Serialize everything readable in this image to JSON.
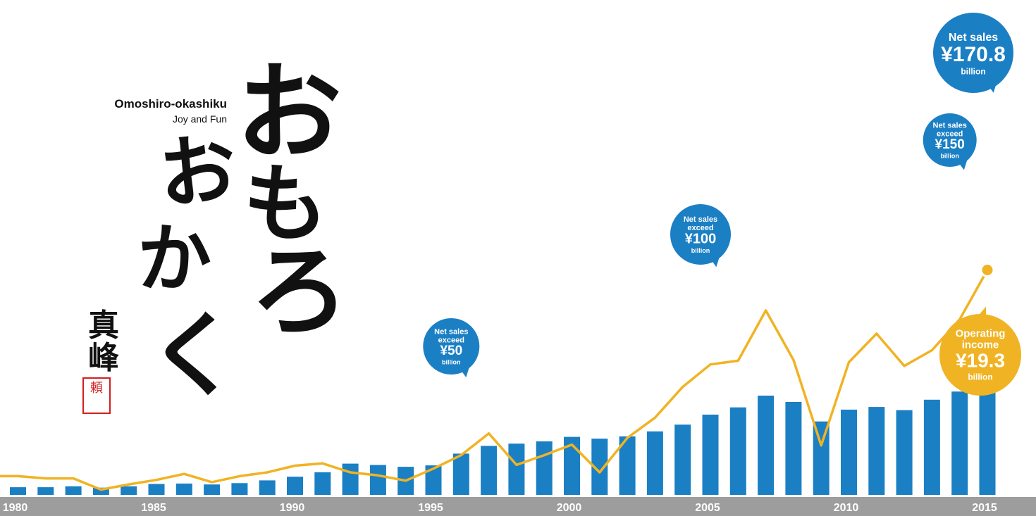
{
  "tagline": {
    "main": "Omoshiro-okashiku",
    "sub": "Joy and Fun"
  },
  "artwork": {
    "brush_text": [
      "お",
      "も",
      "ろ",
      "お",
      "か",
      "く"
    ],
    "signature": "真峰",
    "seal_text": "頼"
  },
  "colors": {
    "bar": "#1b7fc4",
    "line": "#f0b323",
    "axis_band": "#9d9d9d",
    "axis_text": "#ffffff",
    "callout_text": "#ffffff"
  },
  "chart_data": {
    "type": "bar",
    "title": "",
    "xlabel": "",
    "ylabel": "",
    "x": [
      1980,
      1981,
      1982,
      1983,
      1984,
      1985,
      1986,
      1987,
      1988,
      1989,
      1990,
      1991,
      1992,
      1993,
      1994,
      1995,
      1996,
      1997,
      1998,
      1999,
      2000,
      2001,
      2002,
      2003,
      2004,
      2005,
      2006,
      2007,
      2008,
      2009,
      2010,
      2011,
      2012,
      2013,
      2014,
      2015
    ],
    "x_tick_labels": [
      "1980",
      "1985",
      "1990",
      "1995",
      "2000",
      "2005",
      "2010",
      "2015"
    ],
    "series": [
      {
        "type": "bar",
        "values": [
          17,
          17,
          19,
          16,
          19,
          24,
          25,
          23,
          26,
          32,
          40,
          50,
          69,
          66,
          62,
          65,
          91,
          108,
          113,
          118,
          128,
          124,
          129,
          140,
          155,
          177,
          193,
          219,
          205,
          162,
          188,
          194,
          187,
          210,
          228,
          242
        ]
      },
      {
        "type": "line",
        "values": [
          2.5,
          2.2,
          2.2,
          0.7,
          1.4,
          2.0,
          2.8,
          1.7,
          2.5,
          3.0,
          3.9,
          4.2,
          3.0,
          2.6,
          1.9,
          3.5,
          5.3,
          8.2,
          4.0,
          5.3,
          6.7,
          3.0,
          7.6,
          10.3,
          14.4,
          17.4,
          17.9,
          24.6,
          18.0,
          6.6,
          17.7,
          21.5,
          17.2,
          19.3,
          23.4,
          30.0
        ]
      }
    ],
    "ylim": [
      0,
      260
    ],
    "grid": false,
    "legend": "none",
    "callouts": [
      {
        "year": 1996,
        "series": "bar",
        "color": "#1b7fc4",
        "lines": [
          "Net sales",
          "exceed",
          "¥50",
          "billion"
        ]
      },
      {
        "year": 2005,
        "series": "bar",
        "color": "#1b7fc4",
        "lines": [
          "Net sales",
          "exceed",
          "¥100",
          "billion"
        ]
      },
      {
        "year": 2014,
        "series": "bar",
        "color": "#1b7fc4",
        "lines": [
          "Net sales",
          "exceed",
          "¥150",
          "billion"
        ]
      },
      {
        "year": 2015,
        "series": "bar",
        "color": "#1b7fc4",
        "lines": [
          "Net sales",
          "¥170.8",
          "billion"
        ]
      },
      {
        "year": 2015,
        "series": "line",
        "color": "#f0b323",
        "lines": [
          "Operating",
          "income",
          "¥19.3",
          "billion"
        ]
      }
    ]
  }
}
